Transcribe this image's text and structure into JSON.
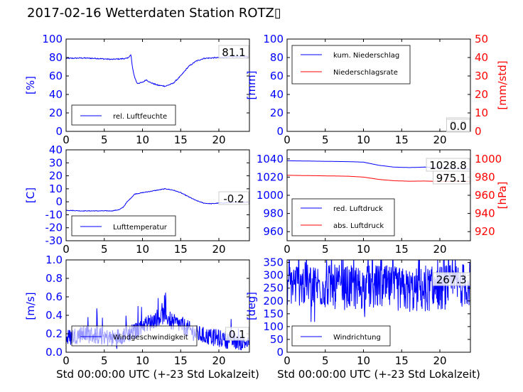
{
  "figure_title": "2017-02-16 Wetterdaten Station ROTZ▯",
  "colors": {
    "primary": "#0000ff",
    "secondary": "#ff0000",
    "axis": "#000000"
  },
  "chart_data": [
    {
      "id": "humidity",
      "type": "line",
      "xlim": [
        0,
        24
      ],
      "xticks": [
        0,
        5,
        10,
        15,
        20
      ],
      "ylim": [
        0,
        100
      ],
      "yticks": [
        0,
        20,
        40,
        60,
        80,
        100
      ],
      "ylabel": "[%]",
      "value_box": "81.1",
      "legend": [
        "rel. Luftfeuchte"
      ],
      "legend_loc": "lower-left",
      "series": [
        {
          "name": "rel. Luftfeuchte",
          "color": "#0000ff",
          "noise": 1.2,
          "x": [
            0,
            2,
            4,
            6,
            8,
            8.5,
            8.7,
            9,
            9.3,
            10,
            10.5,
            11,
            12,
            13,
            14,
            15,
            16,
            17,
            18,
            19,
            20,
            22,
            24
          ],
          "y": [
            79,
            79.5,
            79,
            78,
            79,
            83,
            68,
            58,
            52,
            53,
            56,
            53,
            50,
            49,
            52,
            60,
            70,
            76,
            79,
            79.5,
            80,
            81,
            81.1
          ]
        }
      ]
    },
    {
      "id": "precip",
      "type": "line",
      "xlim": [
        0,
        24
      ],
      "xticks": [
        0,
        5,
        10,
        15,
        20
      ],
      "ylim": [
        0,
        100
      ],
      "yticks": [
        0,
        20,
        40,
        60,
        80,
        100
      ],
      "ylabel": "[mm]",
      "y2lim": [
        0,
        50
      ],
      "y2ticks": [
        0,
        10,
        20,
        30,
        40,
        50
      ],
      "y2label": "[mm/std]",
      "value_box": "0.0",
      "value_box2": "0.0",
      "legend": [
        "kum. Niederschlag",
        "Niederschlagsrate"
      ],
      "legend_loc": "upper-left",
      "series": [
        {
          "name": "kum. Niederschlag",
          "color": "#0000ff",
          "axis": "left",
          "x": [
            0,
            24
          ],
          "y": [
            0,
            0
          ]
        },
        {
          "name": "Niederschlagsrate",
          "color": "#ff0000",
          "axis": "right",
          "x": [
            0,
            24
          ],
          "y": [
            0,
            0
          ]
        }
      ]
    },
    {
      "id": "temperature",
      "type": "line",
      "xlim": [
        0,
        24
      ],
      "xticks": [
        0,
        5,
        10,
        15,
        20
      ],
      "ylim": [
        -30,
        40
      ],
      "yticks": [
        -30,
        -20,
        -10,
        0,
        10,
        20,
        30,
        40
      ],
      "ylabel": "[C]",
      "value_box": "-0.2",
      "legend": [
        "Lufttemperatur"
      ],
      "legend_loc": "lower-left",
      "series": [
        {
          "name": "Lufttemperatur",
          "color": "#0000ff",
          "noise": 0.5,
          "x": [
            0,
            2,
            4,
            6,
            7,
            7.5,
            8,
            8.5,
            9,
            10,
            11,
            12,
            13,
            14,
            15,
            16,
            17,
            18,
            19,
            20,
            22,
            24
          ],
          "y": [
            -6.5,
            -7,
            -7,
            -7,
            -6,
            -4,
            0,
            3,
            6,
            7,
            8,
            9,
            10,
            9,
            7,
            4,
            1,
            -1,
            -1.5,
            -1,
            -0.5,
            -0.2
          ]
        }
      ]
    },
    {
      "id": "pressure",
      "type": "line",
      "xlim": [
        0,
        24
      ],
      "xticks": [
        0,
        5,
        10,
        15,
        20
      ],
      "ylim": [
        950,
        1050
      ],
      "yticks": [
        960,
        980,
        1000,
        1020,
        1040
      ],
      "y2lim": [
        910,
        1010
      ],
      "y2ticks": [
        920,
        940,
        960,
        980,
        1000
      ],
      "y2label": "[hPa]",
      "value_box": "1028.8",
      "value_box2": "975.1",
      "legend": [
        "red. Luftdruck",
        "abs. Luftdruck"
      ],
      "legend_loc": "lower-left",
      "series": [
        {
          "name": "red. Luftdruck",
          "color": "#0000ff",
          "axis": "left",
          "x": [
            0,
            4,
            8,
            10,
            12,
            14,
            16,
            18,
            20,
            24
          ],
          "y": [
            1038,
            1037.5,
            1037,
            1036.5,
            1033,
            1031,
            1030.5,
            1031,
            1030.5,
            1028.8
          ]
        },
        {
          "name": "abs. Luftdruck",
          "color": "#ff0000",
          "axis": "right",
          "x": [
            0,
            4,
            8,
            10,
            12,
            14,
            16,
            18,
            20,
            24
          ],
          "y": [
            982,
            981.5,
            981,
            980,
            977.5,
            976,
            975.5,
            975.7,
            975.3,
            975.1
          ]
        }
      ]
    },
    {
      "id": "windspeed",
      "type": "line",
      "xlim": [
        0,
        24
      ],
      "xticks": [
        0,
        5,
        10,
        15,
        20
      ],
      "ylim": [
        0,
        1.0
      ],
      "yticks": [
        0.0,
        0.2,
        0.4,
        0.6,
        0.8,
        1.0
      ],
      "ylabel": "[m/s]",
      "xlabel": "Std 00:00:00 UTC (+-23 Std Lokalzeit)",
      "value_box": "0.1",
      "legend": [
        "Windgeschwindigkeit"
      ],
      "legend_loc": "lower-left",
      "series": [
        {
          "name": "Windgeschwindigkeit",
          "color": "#0000ff",
          "noise": 0.12,
          "spiky": true,
          "x": [
            0,
            2,
            4,
            6,
            8,
            9,
            10,
            11,
            12,
            13,
            14,
            15,
            16,
            17,
            18,
            20,
            22,
            24
          ],
          "y": [
            0.15,
            0.2,
            0.18,
            0.15,
            0.2,
            0.22,
            0.3,
            0.32,
            0.38,
            0.4,
            0.32,
            0.3,
            0.25,
            0.2,
            0.18,
            0.15,
            0.12,
            0.1
          ]
        }
      ]
    },
    {
      "id": "winddir",
      "type": "line",
      "xlim": [
        0,
        24
      ],
      "xticks": [
        0,
        5,
        10,
        15,
        20
      ],
      "ylim": [
        0,
        360
      ],
      "yticks": [
        0,
        50,
        100,
        150,
        200,
        250,
        300,
        350
      ],
      "ylabel": "[deg]",
      "xlabel": "Std 00:00:00 UTC (+-23 Std Lokalzeit)",
      "value_box": "267.3",
      "legend": [
        "Windrichtung"
      ],
      "legend_loc": "lower-left",
      "series": [
        {
          "name": "Windrichtung",
          "color": "#0000ff",
          "noise": 110,
          "spiky": true,
          "x": [
            0,
            4,
            8,
            12,
            16,
            20,
            24
          ],
          "y": [
            270,
            260,
            250,
            255,
            240,
            250,
            267.3
          ]
        }
      ]
    }
  ]
}
